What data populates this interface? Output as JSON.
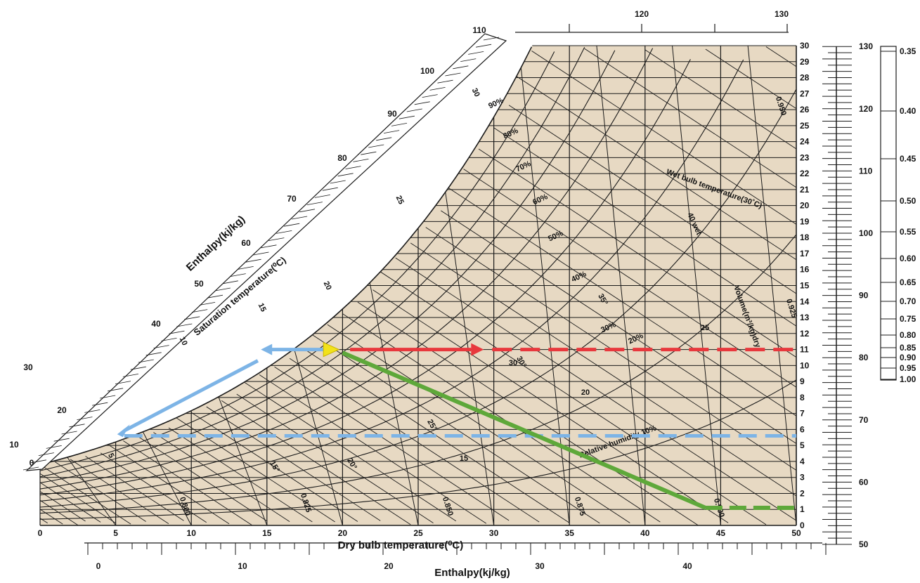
{
  "chart_data": {
    "type": "line",
    "x_axis": {
      "label": "Dry bulb temperature(⁰C)",
      "range": [
        0,
        50
      ],
      "ticks": [
        "0",
        "5",
        "10",
        "15",
        "20",
        "25",
        "30",
        "35",
        "40",
        "45",
        "50"
      ]
    },
    "y_axis_right": {
      "label": "",
      "range": [
        0,
        30
      ],
      "ticks": [
        "0",
        "1",
        "2",
        "3",
        "4",
        "5",
        "6",
        "7",
        "8",
        "9",
        "10",
        "11",
        "12",
        "13",
        "14",
        "15",
        "16",
        "17",
        "18",
        "19",
        "20",
        "21",
        "22",
        "23",
        "24",
        "25",
        "26",
        "27",
        "28",
        "29",
        "30"
      ]
    },
    "enthalpy_bottom_axis": {
      "label": "Enthalpy(kj/kg)",
      "ticks": [
        "0",
        "10",
        "20",
        "30",
        "40"
      ]
    },
    "enthalpy_top_axis": {
      "ticks": [
        "120",
        "130"
      ]
    },
    "enthalpy_diagonal_scale": {
      "label": "Enthalpy(kj/kg)",
      "ticks": [
        "0",
        "10",
        "20",
        "30",
        "40",
        "50",
        "60",
        "70",
        "80",
        "90",
        "100",
        "110"
      ]
    },
    "enthalpy_right_scale": {
      "ticks": [
        "50",
        "60",
        "70",
        "80",
        "90",
        "100",
        "110",
        "120",
        "130"
      ]
    },
    "ratio_scale": {
      "ticks": [
        "0.35",
        "0.40",
        "0.45",
        "0.50",
        "0.55",
        "0.60",
        "0.65",
        "0.70",
        "0.75",
        "0.80",
        "0.85",
        "0.90",
        "0.95",
        "1.00"
      ]
    },
    "saturation_label": "Saturation temperature(⁰C)",
    "wet_bulb_label": "Wet bulb temperature(30˚C)",
    "volume_label": "Volume(m³/kg)dry",
    "rh_label": "Relative humidity 10%",
    "rh_labels": [
      "90%",
      "80%",
      "70%",
      "60%",
      "50%",
      "40%",
      "30%",
      "20%"
    ],
    "wet_bulb_values": [
      "15°",
      "20°",
      "25°",
      "30°",
      "35°"
    ],
    "wb_side_labels": [
      "5",
      "10",
      "15",
      "20",
      "25",
      "30"
    ],
    "volume_values": [
      "0.800",
      "0.825",
      "0.850",
      "0.875",
      "0.900",
      "0.925",
      "0.950"
    ],
    "other_labels": [
      "40 wet",
      "30 ",
      "25",
      "20",
      "15"
    ],
    "process": {
      "state_point": {
        "t": 19.2,
        "w": 11
      },
      "sensible_heating": {
        "t_start": 20.5,
        "t_arrow_end": 28.5,
        "t_dash_end": 50,
        "w": 11,
        "color": "#e8383d"
      },
      "to_saturation": {
        "t_end": 14.6,
        "w": 11,
        "color": "#7db4e6"
      },
      "along_saturation": {
        "t_start": 14.4,
        "w_start": 10.3,
        "t_end": 5.1,
        "w_end": 5.7,
        "color": "#7db4e6"
      },
      "dew_point_dash": {
        "t_start": 5.1,
        "t_end": 50,
        "w": 5.6,
        "color": "#7db4e6"
      },
      "adiabatic": {
        "t_start": 20,
        "w_start": 10.8,
        "t_end": 44,
        "w_end": 1.1,
        "t_dash_end": 50,
        "color": "#5ea83a"
      }
    },
    "colors": {
      "background": "#e7d9c3",
      "grid": "#1a1a1a",
      "red": "#e8383d",
      "blue": "#7db4e6",
      "green": "#5ea83a",
      "state": "#f2e21a"
    }
  }
}
